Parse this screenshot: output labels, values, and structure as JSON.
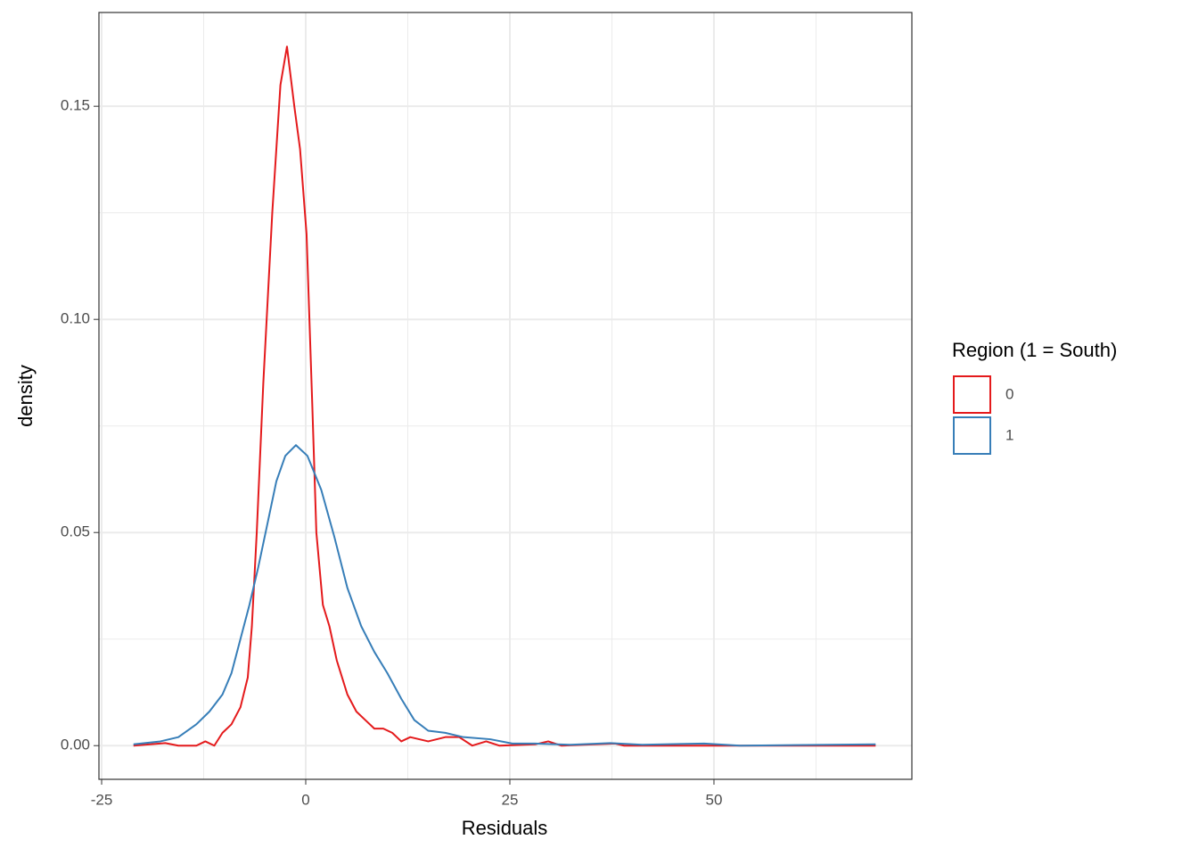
{
  "chart_data": {
    "type": "line",
    "x_label": "Residuals",
    "y_label": "density",
    "xlim": [
      -25.33,
      74.24
    ],
    "ylim": [
      -0.0079,
      0.172
    ],
    "xticks": [
      -25,
      0,
      25,
      50
    ],
    "yticks": [
      {
        "value": 0,
        "label": "0.00"
      },
      {
        "value": 0.05,
        "label": "0.05"
      },
      {
        "value": 0.1,
        "label": "0.10"
      },
      {
        "value": 0.15,
        "label": "0.15"
      }
    ],
    "x_minor_grid": [
      -12.5,
      12.5,
      37.5,
      62.5
    ],
    "y_minor_grid": [
      0.025,
      0.075,
      0.125
    ],
    "grid": true,
    "legend_title": "Region (1 = South)",
    "legend_position": "right",
    "series": [
      {
        "name": "0",
        "color": "#e41a1c",
        "x": [
          -21.1,
          -17.2,
          -15.6,
          -13.4,
          -12.3,
          -11.2,
          -10.2,
          -9.1,
          -8.0,
          -7.1,
          -6.6,
          -6.0,
          -5.2,
          -4.1,
          -3.1,
          -2.3,
          -1.4,
          -0.7,
          0.1,
          0.8,
          1.3,
          2.1,
          2.9,
          3.8,
          5.1,
          6.2,
          7.3,
          8.4,
          9.5,
          10.6,
          11.7,
          12.8,
          15.0,
          17.1,
          18.8,
          20.4,
          22.1,
          23.7,
          28.1,
          29.7,
          31.3,
          37.9,
          39.0,
          49.9,
          69.8
        ],
        "values": [
          0,
          0.0006,
          0,
          0,
          0.001,
          0,
          0.003,
          0.005,
          0.009,
          0.016,
          0.028,
          0.05,
          0.085,
          0.125,
          0.155,
          0.164,
          0.15,
          0.14,
          0.12,
          0.08,
          0.05,
          0.033,
          0.028,
          0.02,
          0.012,
          0.008,
          0.006,
          0.004,
          0.004,
          0.003,
          0.001,
          0.002,
          0.001,
          0.002,
          0.002,
          0,
          0.001,
          0,
          0.0003,
          0.001,
          0,
          0.0005,
          0,
          0,
          0
        ]
      },
      {
        "name": "1",
        "color": "#377eb8",
        "x": [
          -21.1,
          -17.8,
          -15.6,
          -13.4,
          -11.8,
          -10.2,
          -9.1,
          -8.0,
          -6.9,
          -5.8,
          -4.7,
          -3.6,
          -2.5,
          -1.2,
          0.2,
          1.9,
          3.5,
          5.1,
          6.8,
          8.4,
          10.0,
          11.7,
          13.3,
          15.0,
          17.1,
          19.3,
          22.6,
          25.3,
          28.1,
          32.4,
          37.3,
          41.2,
          48.8,
          53.2,
          69.8
        ],
        "values": [
          0.0003,
          0.001,
          0.002,
          0.005,
          0.008,
          0.012,
          0.017,
          0.025,
          0.033,
          0.042,
          0.052,
          0.062,
          0.068,
          0.0705,
          0.068,
          0.06,
          0.049,
          0.037,
          0.028,
          0.022,
          0.017,
          0.011,
          0.006,
          0.0035,
          0.003,
          0.002,
          0.0015,
          0.0005,
          0.0005,
          0.0002,
          0.0006,
          0.0002,
          0.0005,
          0,
          0.0003
        ]
      }
    ]
  }
}
